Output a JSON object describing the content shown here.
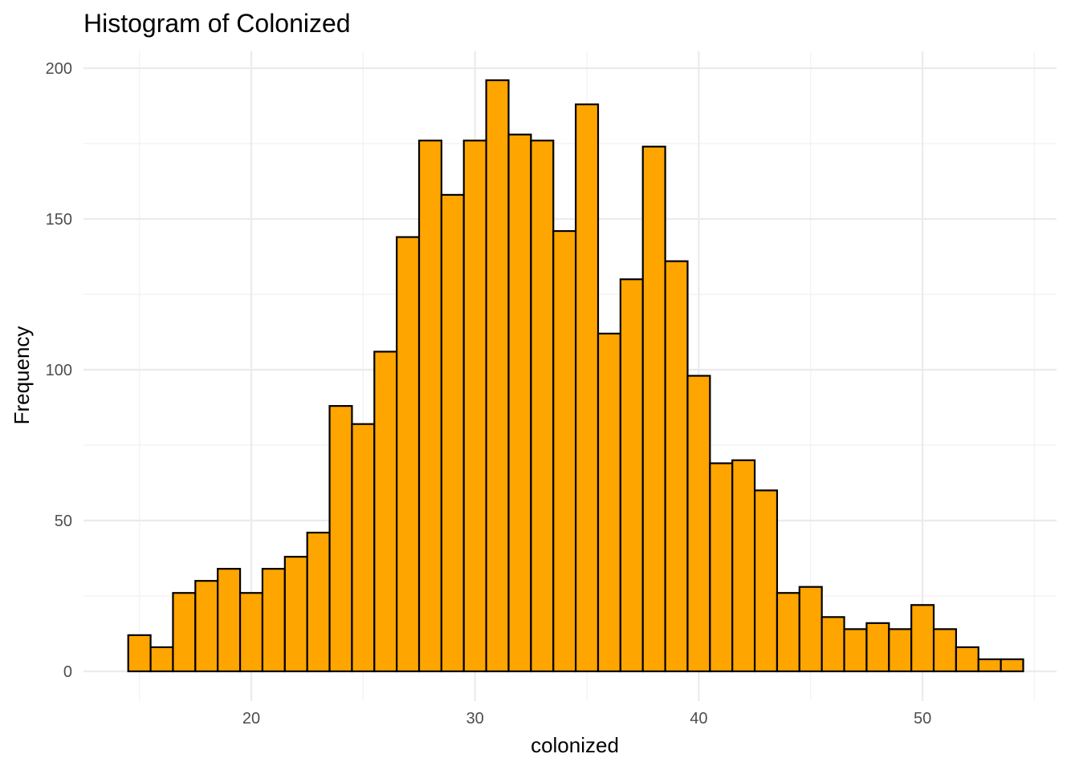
{
  "chart_data": {
    "type": "bar",
    "title": "Histogram of Colonized",
    "xlabel": "colonized",
    "ylabel": "Frequency",
    "bin_width": 1,
    "bin_start": 15,
    "x_ticks": [
      20,
      30,
      40,
      50
    ],
    "x_tick_labels": [
      "20",
      "30",
      "40",
      "50"
    ],
    "y_ticks": [
      0,
      50,
      100,
      150,
      200
    ],
    "y_tick_labels": [
      "0",
      "50",
      "100",
      "150",
      "200"
    ],
    "xlim": [
      13.9,
      55.5
    ],
    "ylim": [
      -9,
      206
    ],
    "grid": true,
    "bar_fill": "#FFA500",
    "bar_outline": "#000000",
    "values": [
      12,
      8,
      26,
      30,
      34,
      26,
      34,
      38,
      46,
      88,
      82,
      106,
      144,
      176,
      158,
      176,
      196,
      178,
      176,
      146,
      188,
      112,
      130,
      174,
      136,
      98,
      69,
      70,
      60,
      26,
      28,
      18,
      14,
      16,
      14,
      22,
      14,
      8,
      4,
      4
    ]
  }
}
